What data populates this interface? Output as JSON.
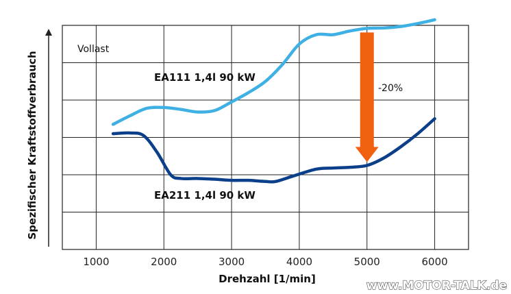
{
  "chart_data": {
    "type": "line",
    "title": "",
    "xlabel": "Drehzahl [1/min]",
    "ylabel": "Spezifischer Kraftstoffverbrauch",
    "xlim": [
      500,
      6500
    ],
    "ylim": [
      0,
      6
    ],
    "x_ticks": [
      "1000",
      "2000",
      "3000",
      "4000",
      "5000",
      "6000"
    ],
    "grid": true,
    "annotations": {
      "condition": "Vollast",
      "change": "-20%",
      "arrow_color": "#f06010"
    },
    "series": [
      {
        "name": "EA111 1,4l 90 kW",
        "color": "#3fb0e3",
        "x": [
          1250,
          1500,
          1750,
          2000,
          2250,
          2500,
          2750,
          3000,
          3250,
          3500,
          3750,
          4000,
          4250,
          4500,
          4750,
          5000,
          5250,
          5500,
          5750,
          6000
        ],
        "y": [
          3.35,
          3.58,
          3.78,
          3.8,
          3.75,
          3.68,
          3.72,
          3.95,
          4.2,
          4.5,
          4.95,
          5.5,
          5.75,
          5.75,
          5.85,
          5.92,
          5.93,
          5.97,
          6.05,
          6.15
        ]
      },
      {
        "name": "EA211 1,4l 90 kW",
        "color": "#0b3f8a",
        "x": [
          1250,
          1500,
          1700,
          1900,
          2100,
          2250,
          2500,
          2750,
          3000,
          3250,
          3500,
          3650,
          3900,
          4250,
          4500,
          4750,
          5000,
          5250,
          5500,
          5750,
          6000
        ],
        "y": [
          3.1,
          3.12,
          3.05,
          2.6,
          2.0,
          1.9,
          1.9,
          1.88,
          1.85,
          1.85,
          1.82,
          1.82,
          1.96,
          2.15,
          2.18,
          2.2,
          2.25,
          2.45,
          2.75,
          3.1,
          3.5
        ]
      }
    ]
  },
  "watermark": "www.MOTOR-TALK.de"
}
